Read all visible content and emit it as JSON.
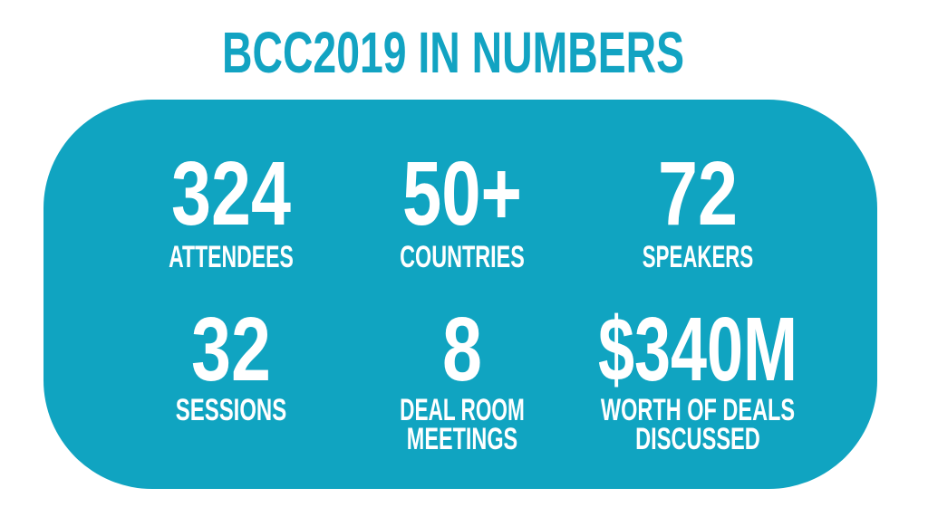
{
  "title": "BCC2019 IN NUMBERS",
  "stats": [
    {
      "value": "324",
      "label": [
        "ATTENDEES"
      ]
    },
    {
      "value": "50+",
      "label": [
        "COUNTRIES"
      ]
    },
    {
      "value": "72",
      "label": [
        "SPEAKERS"
      ]
    },
    {
      "value": "32",
      "label": [
        "SESSIONS"
      ]
    },
    {
      "value": "8",
      "label": [
        "DEAL ROOM",
        "MEETINGS"
      ]
    },
    {
      "value": "$340M",
      "label": [
        "WORTH OF DEALS",
        "DISCUSSED"
      ]
    }
  ]
}
